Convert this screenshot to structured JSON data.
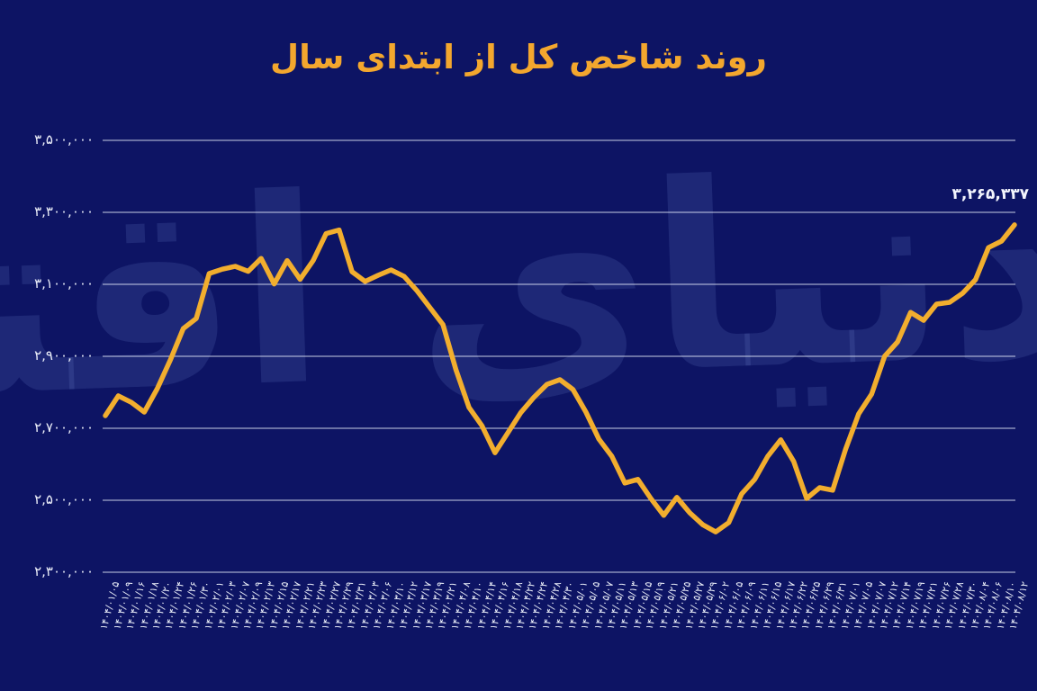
{
  "title": "روند شاخص کل از ابتدای سال",
  "watermark": "دنیای اقتصاد",
  "colors": {
    "background": "#0d1464",
    "line": "#f2ae2e",
    "title_text": "#f3a72e",
    "gridline": "#e9eefb",
    "tick_text": "#edf0fa",
    "watermark_tint": "#96affa"
  },
  "annotation": {
    "label": "۳,۲۶۵,۳۳۷",
    "value": 3265337
  },
  "y_axis": {
    "ticks": [
      {
        "label": "۳,۵۰۰,۰۰۰",
        "value": 3500000
      },
      {
        "label": "۳,۳۰۰,۰۰۰",
        "value": 3300000
      },
      {
        "label": "۳,۱۰۰,۰۰۰",
        "value": 3100000
      },
      {
        "label": "۲,۹۰۰,۰۰۰",
        "value": 2900000
      },
      {
        "label": "۲,۷۰۰,۰۰۰",
        "value": 2700000
      },
      {
        "label": "۲,۵۰۰,۰۰۰",
        "value": 2500000
      },
      {
        "label": "۲,۳۰۰,۰۰۰",
        "value": 2300000
      }
    ]
  },
  "chart_data": {
    "type": "line",
    "title": "روند شاخص کل از ابتدای سال",
    "xlabel": "",
    "ylabel": "",
    "ylim": [
      2300000,
      3500000
    ],
    "grid": "horizontal",
    "legend": "none",
    "line_color": "#f2ae2e",
    "last_point_label": "۳,۲۶۵,۳۳۷",
    "x": [
      "۱۴۰۴/۰۱/۰۵",
      "۱۴۰۴/۰۱/۰۹",
      "۱۴۰۴/۰۱/۱۶",
      "۱۴۰۴/۰۱/۱۸",
      "۱۴۰۴/۰۱/۲۰",
      "۱۴۰۴/۰۱/۲۴",
      "۱۴۰۴/۰۱/۲۶",
      "۱۴۰۴/۰۱/۳۰",
      "۱۴۰۴/۰۲/۰۱",
      "۱۴۰۴/۰۲/۰۳",
      "۱۴۰۴/۰۲/۰۷",
      "۱۴۰۴/۰۲/۰۹",
      "۱۴۰۴/۰۲/۱۳",
      "۱۴۰۴/۰۲/۱۵",
      "۱۴۰۴/۰۲/۱۷",
      "۱۴۰۴/۰۲/۲۱",
      "۱۴۰۴/۰۲/۲۳",
      "۱۴۰۴/۰۲/۲۷",
      "۱۴۰۴/۰۲/۲۹",
      "۱۴۰۴/۰۲/۳۱",
      "۱۴۰۴/۰۳/۰۳",
      "۱۴۰۴/۰۳/۰۶",
      "۱۴۰۴/۰۳/۱۰",
      "۱۴۰۴/۰۳/۱۲",
      "۱۴۰۴/۰۳/۱۷",
      "۱۴۰۴/۰۳/۱۹",
      "۱۴۰۴/۰۳/۲۱",
      "۱۴۰۴/۰۴/۰۸",
      "۱۴۰۴/۰۴/۱۰",
      "۱۴۰۴/۰۴/۱۴",
      "۱۴۰۴/۰۴/۱۶",
      "۱۴۰۴/۰۴/۱۸",
      "۱۴۰۴/۰۴/۲۲",
      "۱۴۰۴/۰۴/۲۴",
      "۱۴۰۴/۰۴/۲۸",
      "۱۴۰۴/۰۴/۳۰",
      "۱۴۰۴/۰۵/۰۱",
      "۱۴۰۴/۰۵/۰۵",
      "۱۴۰۴/۰۵/۰۷",
      "۱۴۰۴/۰۵/۱۱",
      "۱۴۰۴/۰۵/۱۳",
      "۱۴۰۴/۰۵/۱۵",
      "۱۴۰۴/۰۵/۱۹",
      "۱۴۰۴/۰۵/۲۱",
      "۱۴۰۴/۰۵/۲۵",
      "۱۴۰۴/۰۵/۲۷",
      "۱۴۰۴/۰۵/۲۹",
      "۱۴۰۴/۰۶/۰۲",
      "۱۴۰۴/۰۶/۰۵",
      "۱۴۰۴/۰۶/۰۹",
      "۱۴۰۴/۰۶/۱۱",
      "۱۴۰۴/۰۶/۱۵",
      "۱۴۰۴/۰۶/۱۷",
      "۱۴۰۴/۰۶/۲۲",
      "۱۴۰۴/۰۶/۲۵",
      "۱۴۰۴/۰۶/۲۹",
      "۱۴۰۴/۰۶/۳۱",
      "۱۴۰۴/۰۷/۰۱",
      "۱۴۰۴/۰۷/۰۵",
      "۱۴۰۴/۰۷/۰۷",
      "۱۴۰۴/۰۷/۱۲",
      "۱۴۰۴/۰۷/۱۴",
      "۱۴۰۴/۰۷/۱۹",
      "۱۴۰۴/۰۷/۲۱",
      "۱۴۰۴/۰۷/۲۶",
      "۱۴۰۴/۰۷/۲۸",
      "۱۴۰۴/۰۷/۳۰",
      "۱۴۰۴/۰۸/۰۴",
      "۱۴۰۴/۰۸/۰۶",
      "۱۴۰۴/۰۸/۱۰",
      "۱۴۰۴/۰۸/۱۲"
    ],
    "series": [
      {
        "name": "شاخص کل",
        "values": [
          2735000,
          2790000,
          2772000,
          2745000,
          2810000,
          2889000,
          2977000,
          3005000,
          3130000,
          3142000,
          3150000,
          3136000,
          3172000,
          3101000,
          3166000,
          3114000,
          3166000,
          3241000,
          3251000,
          3135000,
          3108000,
          3125000,
          3140000,
          3122000,
          3082000,
          3035000,
          2988000,
          2862000,
          2758000,
          2707000,
          2632000,
          2688000,
          2744000,
          2786000,
          2822000,
          2835000,
          2808000,
          2745000,
          2670000,
          2622000,
          2548000,
          2558000,
          2505000,
          2458000,
          2508000,
          2465000,
          2432000,
          2412000,
          2438000,
          2518000,
          2558000,
          2622000,
          2668000,
          2608000,
          2505000,
          2535000,
          2528000,
          2642000,
          2740000,
          2795000,
          2900000,
          2940000,
          3022000,
          3000000,
          3045000,
          3050000,
          3075000,
          3113000,
          3202000,
          3220000,
          3265337
        ]
      }
    ]
  }
}
